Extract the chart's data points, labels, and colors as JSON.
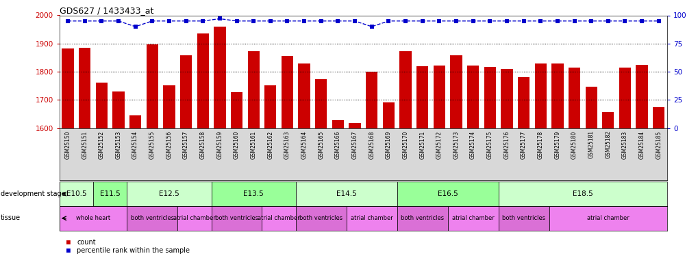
{
  "title": "GDS627 / 1433433_at",
  "samples": [
    "GSM25150",
    "GSM25151",
    "GSM25152",
    "GSM25153",
    "GSM25154",
    "GSM25155",
    "GSM25156",
    "GSM25157",
    "GSM25158",
    "GSM25159",
    "GSM25160",
    "GSM25161",
    "GSM25162",
    "GSM25163",
    "GSM25164",
    "GSM25165",
    "GSM25166",
    "GSM25167",
    "GSM25168",
    "GSM25169",
    "GSM25170",
    "GSM25171",
    "GSM25172",
    "GSM25173",
    "GSM25174",
    "GSM25175",
    "GSM25176",
    "GSM25177",
    "GSM25178",
    "GSM25179",
    "GSM25180",
    "GSM25181",
    "GSM25182",
    "GSM25183",
    "GSM25184",
    "GSM25185"
  ],
  "counts": [
    1882,
    1885,
    1762,
    1730,
    1645,
    1897,
    1752,
    1858,
    1935,
    1960,
    1728,
    1873,
    1752,
    1856,
    1828,
    1773,
    1627,
    1618,
    1800,
    1692,
    1872,
    1820,
    1822,
    1857,
    1822,
    1818,
    1810,
    1780,
    1828,
    1828,
    1815,
    1747,
    1656,
    1815,
    1825,
    1673
  ],
  "percentile": [
    95,
    95,
    95,
    95,
    90,
    95,
    95,
    95,
    95,
    97,
    95,
    95,
    95,
    95,
    95,
    95,
    95,
    95,
    90,
    95,
    95,
    95,
    95,
    95,
    95,
    95,
    95,
    95,
    95,
    95,
    95,
    95,
    95,
    95,
    95,
    95
  ],
  "ylim_left": [
    1600,
    2000
  ],
  "ylim_right": [
    0,
    100
  ],
  "yticks_left": [
    1600,
    1700,
    1800,
    1900,
    2000
  ],
  "yticks_right": [
    0,
    25,
    50,
    75,
    100
  ],
  "bar_color": "#cc0000",
  "dot_color": "#0000cc",
  "bg_color": "#ffffff",
  "xtick_bg": "#d8d8d8",
  "dev_stages": [
    {
      "label": "E10.5",
      "start": 0,
      "end": 2,
      "color": "#ccffcc"
    },
    {
      "label": "E11.5",
      "start": 2,
      "end": 4,
      "color": "#99ff99"
    },
    {
      "label": "E12.5",
      "start": 4,
      "end": 9,
      "color": "#ccffcc"
    },
    {
      "label": "E13.5",
      "start": 9,
      "end": 14,
      "color": "#99ff99"
    },
    {
      "label": "E14.5",
      "start": 14,
      "end": 20,
      "color": "#ccffcc"
    },
    {
      "label": "E16.5",
      "start": 20,
      "end": 26,
      "color": "#99ff99"
    },
    {
      "label": "E18.5",
      "start": 26,
      "end": 36,
      "color": "#ccffcc"
    }
  ],
  "tissues": [
    {
      "label": "whole heart",
      "start": 0,
      "end": 4,
      "color": "#ee82ee"
    },
    {
      "label": "both ventricles",
      "start": 4,
      "end": 7,
      "color": "#da70d6"
    },
    {
      "label": "atrial chamber",
      "start": 7,
      "end": 9,
      "color": "#ee82ee"
    },
    {
      "label": "both ventricles",
      "start": 9,
      "end": 12,
      "color": "#da70d6"
    },
    {
      "label": "atrial chamber",
      "start": 12,
      "end": 14,
      "color": "#ee82ee"
    },
    {
      "label": "both ventricles",
      "start": 14,
      "end": 17,
      "color": "#da70d6"
    },
    {
      "label": "atrial chamber",
      "start": 17,
      "end": 20,
      "color": "#ee82ee"
    },
    {
      "label": "both ventricles",
      "start": 20,
      "end": 23,
      "color": "#da70d6"
    },
    {
      "label": "atrial chamber",
      "start": 23,
      "end": 26,
      "color": "#ee82ee"
    },
    {
      "label": "both ventricles",
      "start": 26,
      "end": 29,
      "color": "#da70d6"
    },
    {
      "label": "atrial chamber",
      "start": 29,
      "end": 36,
      "color": "#ee82ee"
    }
  ]
}
